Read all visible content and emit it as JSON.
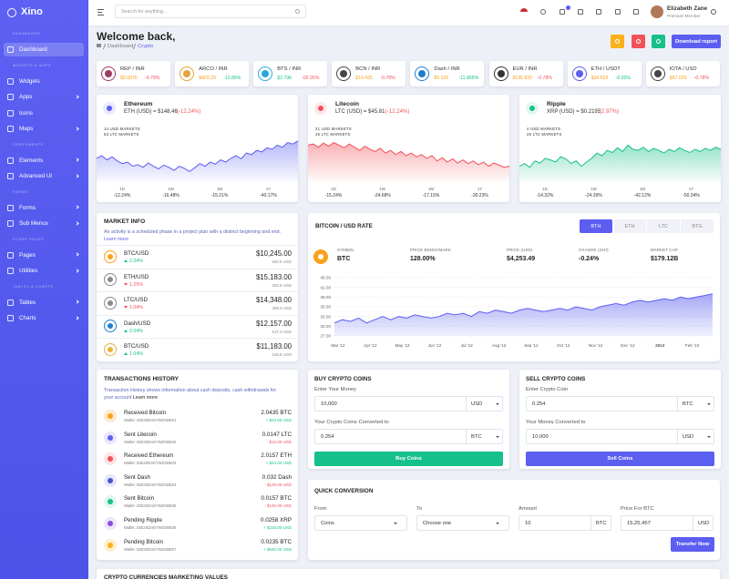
{
  "sidebar": {
    "brand": "Xino",
    "sections": [
      {
        "label": "DASHBOARD",
        "items": [
          {
            "label": "Dashboard"
          }
        ]
      },
      {
        "label": "WIDGETS & MAPS",
        "items": [
          {
            "label": "Widgets"
          },
          {
            "label": "Apps"
          },
          {
            "label": "Icons"
          },
          {
            "label": "Maps"
          }
        ]
      },
      {
        "label": "COMPONENTS",
        "items": [
          {
            "label": "Elements"
          },
          {
            "label": "Advanced UI"
          }
        ]
      },
      {
        "label": "FORMS",
        "items": [
          {
            "label": "Forms"
          },
          {
            "label": "Sub Menus"
          }
        ]
      },
      {
        "label": "OTHER PAGES",
        "items": [
          {
            "label": "Pages"
          },
          {
            "label": "Utilities"
          }
        ]
      },
      {
        "label": "TABLES & CHARTS",
        "items": [
          {
            "label": "Tables"
          },
          {
            "label": "Charts"
          }
        ]
      }
    ]
  },
  "topbar": {
    "search_placeholder": "Search for anything...",
    "user_name": "Elizabeth Zane",
    "user_role": "Premium Member"
  },
  "header": {
    "title": "Welcome back,",
    "breadcrumb_path": "Dashboard",
    "breadcrumb_current": "Crypto",
    "button": "Download report"
  },
  "tickers": [
    {
      "pair": "REP / INR",
      "price": "$0.0076",
      "change": "-0.78%"
    },
    {
      "pair": "ARCO / INR",
      "price": "$403.29",
      "change": "-12.85%"
    },
    {
      "pair": "BTS / INR",
      "price": "$2.796",
      "change": "-02.26%"
    },
    {
      "pair": "BCN / INR",
      "price": "$10.425",
      "change": "-0.78%"
    },
    {
      "pair": "Dash / INR",
      "price": "$5.125",
      "change": "-11.855%"
    },
    {
      "pair": "EUR / INR",
      "price": "$135.825",
      "change": "-0.78%"
    },
    {
      "pair": "ETH / USDT",
      "price": "$34.623",
      "change": "-0.02%"
    },
    {
      "pair": "IOTA / USD",
      "price": "$67.025",
      "change": "-0.78%"
    }
  ],
  "coin_periods": [
    "1D",
    "1W",
    "1M",
    "1Y"
  ],
  "coins": [
    {
      "name": "Ethereum",
      "rate": "ETH (USD) = $148.46",
      "change": "(-12.24%)",
      "usd_markets": "14 USD MARKETS",
      "ltc_markets": "63 LTC MARKETS",
      "period_changes": [
        "-12.24%",
        "-16.48%",
        "-15.21%",
        "-40.17%"
      ],
      "trend": [
        45,
        50,
        42,
        48,
        40,
        35,
        38,
        30,
        33,
        28,
        36,
        30,
        25,
        32,
        28,
        22,
        30,
        26,
        20,
        27,
        35,
        30,
        38,
        34,
        42,
        38,
        45,
        50,
        44,
        55,
        52,
        60,
        57,
        65,
        62,
        70,
        66,
        75,
        72,
        78
      ]
    },
    {
      "name": "Litecoin",
      "rate": "LTC (USD) = $45.81",
      "change": "(-12.24%)",
      "usd_markets": "21 USD MARKETS",
      "ltc_markets": "45 LTC MARKETS",
      "period_changes": [
        "-15.24%",
        "-24.68%",
        "-17.15%",
        "-30.23%"
      ],
      "trend": [
        70,
        72,
        66,
        74,
        68,
        75,
        70,
        65,
        72,
        66,
        60,
        68,
        62,
        58,
        64,
        55,
        60,
        52,
        58,
        50,
        55,
        48,
        52,
        45,
        50,
        40,
        46,
        38,
        44,
        36,
        42,
        35,
        40,
        33,
        38,
        30,
        36,
        32,
        28,
        30
      ]
    },
    {
      "name": "Ripple",
      "rate": "XRP (USD) = $0.2195",
      "change": "(2.97%)",
      "usd_markets": "4 USD MARKETS",
      "ltc_markets": "25 LTC MARKETS",
      "period_changes": [
        "-14.32%",
        "-24.39%",
        "-42.12%",
        "-50.34%"
      ],
      "trend": [
        30,
        35,
        28,
        40,
        36,
        45,
        42,
        38,
        48,
        44,
        35,
        40,
        30,
        38,
        45,
        55,
        50,
        60,
        56,
        65,
        58,
        70,
        62,
        60,
        66,
        58,
        64,
        60,
        55,
        62,
        58,
        65,
        60,
        56,
        62,
        58,
        64,
        60,
        66,
        62
      ]
    }
  ],
  "market_info": {
    "title": "MARKET INFO",
    "description": "An activity is a scheduled phase in a project plan with a distinct beginning and end.",
    "link": "Learn more",
    "rows": [
      {
        "pair": "BTC/USD",
        "change": "2.04%",
        "price": "$10,245.00",
        "volume": "540.5 USD"
      },
      {
        "pair": "ETH/USD",
        "change": "1.25%",
        "price": "$15,183.00",
        "volume": "283.5 USD"
      },
      {
        "pair": "LTC/USD",
        "change": "1.04%",
        "price": "$14,348.00",
        "volume": "368.2 USD"
      },
      {
        "pair": "Dash/USD",
        "change": "2.04%",
        "price": "$12,157.00",
        "volume": "127.3 USD"
      },
      {
        "pair": "BTC/USD",
        "change": "1.04%",
        "price": "$11,183.00",
        "volume": "165.8 USD"
      }
    ]
  },
  "chart_data": {
    "type": "area",
    "title": "BITCOIN / USD RATE",
    "tabs": [
      "BTH",
      "ETH",
      "LTC",
      "BTG"
    ],
    "stats": [
      {
        "label": "SYMBOL",
        "value": "BTC"
      },
      {
        "label": "PRICE BENCHMARK",
        "value": "128.00%"
      },
      {
        "label": "PRICE (USD)",
        "value": "$4,253.49"
      },
      {
        "label": "CHANGE (24H)",
        "value": "-0.24%"
      },
      {
        "label": "MARKET CAP",
        "value": "$179.12B"
      }
    ],
    "categories": [
      "Mar '12",
      null,
      null,
      null,
      "Apr '12",
      null,
      null,
      null,
      "May '12",
      null,
      null,
      null,
      "Jun '12",
      null,
      null,
      null,
      "Jul '12",
      null,
      null,
      null,
      "Aug '12",
      null,
      null,
      null,
      "Sep '12",
      null,
      null,
      null,
      "Oct '12",
      null,
      null,
      null,
      "Nov '12",
      null,
      null,
      null,
      "Dec '12",
      null,
      null,
      null,
      "2013",
      null,
      null,
      null,
      "Feb '13",
      null,
      null,
      null
    ],
    "values": [
      31,
      32,
      31.5,
      32.5,
      31,
      32,
      33,
      32,
      33,
      32.5,
      33.5,
      33,
      32.5,
      33,
      34,
      33.5,
      34,
      33,
      34.5,
      34,
      35,
      34.5,
      34,
      35,
      35.5,
      35,
      34.5,
      35,
      35.5,
      35,
      36,
      35.5,
      35,
      36,
      36.5,
      37,
      36.5,
      37.5,
      38,
      37.5,
      38,
      38.5,
      38,
      39,
      38.5,
      39,
      39.5,
      40
    ],
    "color": "#5b5ef0",
    "ylim": [
      27,
      45
    ],
    "yticks": [
      {
        "value": 45,
        "label": "45.00"
      },
      {
        "value": 42,
        "label": "42.00"
      },
      {
        "value": 39,
        "label": "39.00"
      },
      {
        "value": 36,
        "label": "36.00"
      },
      {
        "value": 33,
        "label": "33.00"
      },
      {
        "value": 30,
        "label": "30.00"
      },
      {
        "value": 27,
        "label": "27.00"
      }
    ],
    "grid": true
  },
  "transactions": {
    "title": "TRANSACTIONS HISTORY",
    "description": "Transaction History shows information about cash deposits, cash withdrawals for your account",
    "link": "Learn more",
    "rows": [
      {
        "title": "Received Bitcoin",
        "wallet": "Wallet: 03E2SDAEYWZXBE01",
        "amount": "2.0435 BTC",
        "usd": "+ $23.00 USD"
      },
      {
        "title": "Sent Litecoin",
        "wallet": "Wallet: 03E2SDAEYWZXBE02",
        "amount": "0.0147 LTC",
        "usd": "- $12.00 USD"
      },
      {
        "title": "Received Ethereum",
        "wallet": "Wallet: 03E2SDAEYWZXBE03",
        "amount": "2.0157 ETH",
        "usd": "+ $24.00 USD"
      },
      {
        "title": "Sent Dash",
        "wallet": "Wallet: 03E2SDAEYWZXBE04",
        "amount": "0.032 Dash",
        "usd": "- $125.00 USD"
      },
      {
        "title": "Sent Bitcoin",
        "wallet": "Wallet: 03E2SDAEYWZXBE05",
        "amount": "0.0157 BTC",
        "usd": "- $145.00 USD"
      },
      {
        "title": "Pending Ripple",
        "wallet": "Wallet: 03E2SDAEYWZXBE06",
        "amount": "0.0258 XRP",
        "usd": "+ $225.00 USD"
      },
      {
        "title": "Pending Bitcoin",
        "wallet": "Wallet: 03E2SDAEYWZXBE07",
        "amount": "0.0235 BTC",
        "usd": "+ $540.00 USD"
      }
    ]
  },
  "buy": {
    "title": "BUY CRYPTO COINS",
    "fields": [
      {
        "label": "Enter Your Money",
        "value": "10,000",
        "unit": "USD"
      },
      {
        "label": "Your Crypto Coins Converted to",
        "value": "0.254",
        "unit": "BTC"
      }
    ],
    "button": "Buy Coins"
  },
  "sell": {
    "title": "SELL CRYPTO COINS",
    "fields": [
      {
        "label": "Enter Crypto Coin",
        "value": "0.254",
        "unit": "BTC"
      },
      {
        "label": "Your Money Converted to",
        "value": "10,000",
        "unit": "USD"
      }
    ],
    "button": "Sell Coins"
  },
  "conversion": {
    "title": "QUICK CONVERSION",
    "fields": [
      {
        "label": "From",
        "value": "Coins"
      },
      {
        "label": "To",
        "value": "Choose one"
      },
      {
        "label": "Amount",
        "value": "10",
        "unit": "BTC"
      },
      {
        "label": "Price For BTC",
        "value": "15,25,457",
        "unit": "USD"
      }
    ],
    "button": "Transfer Now"
  },
  "bottom_title": "CRYPTO CURRENCIES MARKETING VALUES"
}
